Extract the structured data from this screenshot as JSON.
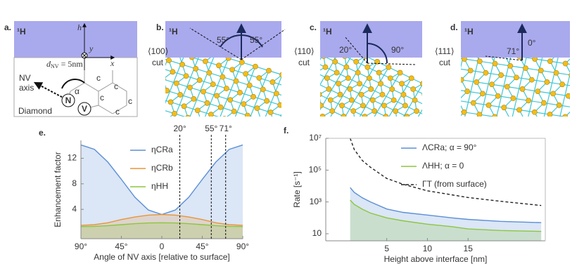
{
  "panels": [
    {
      "label": "a.",
      "proton": "¹H",
      "h": "h",
      "y": "y",
      "x": "x",
      "d": "d",
      "d_sub": "NV",
      "d_rest": " = 5nm",
      "nv": "NV",
      "axis": "axis",
      "alpha": "α",
      "n": "N",
      "v": "V",
      "material": "Diamond",
      "carbons": [
        "c",
        "c",
        "c",
        "c",
        "c"
      ]
    },
    {
      "label": "b.",
      "proton": "¹H",
      "cut": [
        "⟨100⟩",
        "cut"
      ],
      "angles": [
        "55°",
        "55°"
      ]
    },
    {
      "label": "c.",
      "proton": "¹H",
      "cut": [
        "⟨110⟩",
        "cut"
      ],
      "angles": [
        "20°",
        "90°"
      ]
    },
    {
      "label": "d.",
      "proton": "¹H",
      "cut": [
        "⟨111⟩",
        "cut"
      ],
      "angles": [
        "71°",
        "0°"
      ]
    }
  ],
  "chart_data": [
    {
      "type": "line",
      "panel_label": "e.",
      "x_label": "Angle of NV axis [relative to surface]",
      "y_label": "Enhancement factor",
      "x": [
        -90,
        -75,
        -60,
        -45,
        -30,
        -15,
        0,
        15,
        30,
        45,
        60,
        75,
        90
      ],
      "series": [
        {
          "name": "ηCRa",
          "color": "#5b8fd6",
          "fill": true,
          "values": [
            14.1,
            13.4,
            11.4,
            8.7,
            5.9,
            3.9,
            3.2,
            3.9,
            5.9,
            8.7,
            11.4,
            13.4,
            14.1
          ]
        },
        {
          "name": "ηCRb",
          "color": "#e8953a",
          "fill": true,
          "values": [
            1.5,
            1.6,
            1.9,
            2.4,
            2.8,
            3.1,
            3.2,
            3.1,
            2.8,
            2.4,
            1.9,
            1.6,
            1.5
          ]
        },
        {
          "name": "ηHH",
          "color": "#8cc63f",
          "fill": true,
          "values": [
            1.3,
            1.34,
            1.45,
            1.6,
            1.75,
            1.86,
            1.9,
            1.86,
            1.75,
            1.6,
            1.45,
            1.34,
            1.3
          ]
        }
      ],
      "xlim": [
        -90,
        90
      ],
      "ylim": [
        -0.6,
        14.8
      ],
      "xticks": [
        {
          "value": -90,
          "label": "90°"
        },
        {
          "value": -45,
          "label": "45°"
        },
        0,
        {
          "value": 45,
          "label": "45°"
        },
        {
          "value": 90,
          "label": "90°"
        }
      ],
      "yticks": [
        4,
        8,
        12
      ],
      "vlines": [
        {
          "value": 20,
          "label": "20°"
        },
        {
          "value": 55,
          "label": "55°"
        },
        {
          "value": 71,
          "label": "71°"
        }
      ],
      "legend": "top-center",
      "log_y": false
    },
    {
      "type": "line",
      "panel_label": "f.",
      "x_label": "Height above interface [nm]",
      "y_label": "Rate [s⁻¹]",
      "x": [
        0.5,
        1,
        2,
        3,
        5,
        7,
        10,
        13,
        15,
        19,
        24
      ],
      "series": [
        {
          "name": "ΛCRa; α = 90°",
          "color": "#5b8fd6",
          "fill": true,
          "dashed": false,
          "values": [
            8000,
            4000,
            1800,
            1000,
            360,
            220,
            150,
            100,
            80,
            60,
            50
          ]
        },
        {
          "name": "ΛHH; α = 0",
          "color": "#8cc63f",
          "fill": true,
          "dashed": false,
          "values": [
            1300,
            700,
            350,
            200,
            100,
            65,
            40,
            28,
            20,
            16,
            14
          ]
        },
        {
          "name": "ΓT (from surface)",
          "color": "#222222",
          "fill": false,
          "dashed": true,
          "values": [
            10000000,
            2000000,
            400000,
            150000,
            30000,
            13000,
            5000,
            2800,
            1900,
            1100,
            600
          ]
        }
      ],
      "xlim": [
        -2.5,
        24.5
      ],
      "ylim": [
        3.6,
        10000000
      ],
      "xticks": [
        5,
        10,
        15
      ],
      "yticks": [
        10,
        {
          "value": 1000,
          "label": "10³"
        },
        {
          "value": 100000,
          "label": "10⁵"
        },
        {
          "value": 10000000,
          "label": "10⁷"
        }
      ],
      "legend": "top-right",
      "log_y": true
    }
  ]
}
